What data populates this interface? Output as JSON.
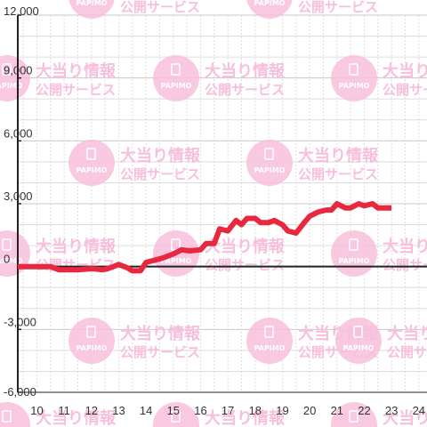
{
  "chart_data": {
    "type": "line",
    "title": "",
    "xlabel": "",
    "ylabel": "",
    "xlim": [
      9.3,
      24.3
    ],
    "ylim": [
      -6000,
      12000
    ],
    "x_ticks": [
      "10",
      "11",
      "12",
      "13",
      "14",
      "15",
      "16",
      "17",
      "18",
      "19",
      "20",
      "21",
      "22",
      "23",
      "24"
    ],
    "y_ticks": [
      "12,000",
      "9,000",
      "6,000",
      "3,000",
      "0",
      "-3,000",
      "-6,000"
    ],
    "grid": true,
    "series": [
      {
        "color": "#e8283f",
        "x": [
          9.3,
          10.0,
          10.5,
          10.8,
          11.5,
          12.0,
          12.4,
          12.6,
          13.0,
          13.3,
          13.5,
          13.8,
          14.0,
          14.3,
          14.6,
          15.0,
          15.3,
          15.6,
          16.0,
          16.2,
          16.5,
          16.7,
          17.0,
          17.3,
          17.5,
          17.7,
          18.0,
          18.2,
          18.5,
          18.7,
          19.0,
          19.2,
          19.5,
          19.8,
          20.0,
          20.3,
          20.6,
          20.8,
          21.0,
          21.3,
          21.5,
          21.8,
          22.0,
          22.3,
          22.5,
          22.7,
          23.0
        ],
        "y": [
          0,
          0,
          0,
          -150,
          -150,
          -100,
          -150,
          -100,
          100,
          -50,
          -200,
          -200,
          200,
          300,
          400,
          600,
          800,
          750,
          800,
          1100,
          1100,
          1800,
          1700,
          2200,
          2000,
          2300,
          2300,
          2100,
          2100,
          2200,
          2000,
          1700,
          1600,
          2100,
          2400,
          2600,
          2700,
          2700,
          3000,
          2800,
          2800,
          3000,
          2900,
          3000,
          2800,
          2800,
          2800
        ]
      }
    ]
  },
  "watermark": {
    "line1": "大当り情報",
    "line2": "公開サービス",
    "brand": "PAPIMO"
  },
  "colors": {
    "line": "#e8283f",
    "axis": "#222222",
    "grid_major": "#c8c8c8",
    "grid_minor": "#dddddd",
    "watermark": "#f7bfdc"
  }
}
